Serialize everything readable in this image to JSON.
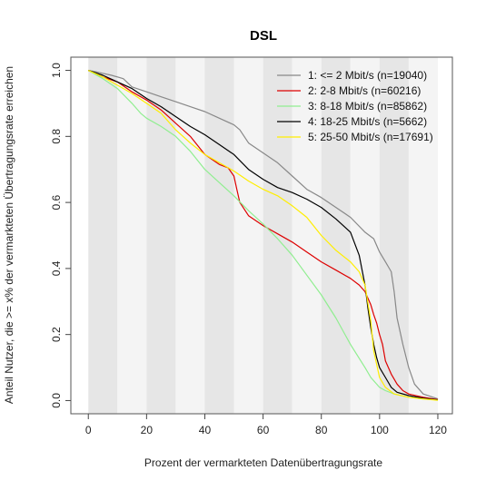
{
  "chart_data": {
    "type": "line",
    "title": "DSL",
    "xlabel": "Prozent der vermarkteten Datenübertragungsrate",
    "ylabel": "Anteil Nutzer, die >= x% der vermarkteten Übertragungsrate erreichen",
    "xlim": [
      -6,
      125
    ],
    "ylim": [
      -0.04,
      1.04
    ],
    "xticks": [
      0,
      20,
      40,
      60,
      80,
      100,
      120
    ],
    "yticks": [
      0.0,
      0.2,
      0.4,
      0.6,
      0.8,
      1.0
    ],
    "background_bands": {
      "step": 10,
      "colors": [
        "#e6e6e6",
        "#f4f4f4"
      ]
    },
    "legend_position": "top-right",
    "series": [
      {
        "name": "1: <= 2 Mbit/s (n=19040)",
        "color": "#888888",
        "x": [
          0,
          3,
          8,
          12,
          15,
          20,
          25,
          30,
          35,
          40,
          45,
          50,
          52,
          55,
          60,
          65,
          70,
          75,
          80,
          85,
          90,
          95,
          98,
          100,
          102,
          104,
          105,
          106,
          108,
          110,
          112,
          115,
          120
        ],
        "y": [
          1.0,
          0.995,
          0.985,
          0.975,
          0.95,
          0.935,
          0.92,
          0.905,
          0.89,
          0.875,
          0.855,
          0.835,
          0.82,
          0.78,
          0.75,
          0.72,
          0.68,
          0.64,
          0.615,
          0.585,
          0.555,
          0.51,
          0.49,
          0.45,
          0.42,
          0.39,
          0.33,
          0.25,
          0.17,
          0.1,
          0.05,
          0.02,
          0.005
        ]
      },
      {
        "name": "2: 2-8 Mbit/s (n=60216)",
        "color": "#dd0000",
        "x": [
          0,
          5,
          10,
          15,
          20,
          25,
          30,
          35,
          40,
          45,
          48,
          50,
          51,
          52,
          55,
          60,
          65,
          70,
          75,
          80,
          85,
          90,
          93,
          95,
          97,
          98,
          99,
          100,
          101,
          102,
          104,
          106,
          108,
          110,
          115,
          120
        ],
        "y": [
          1.0,
          0.98,
          0.965,
          0.935,
          0.91,
          0.88,
          0.84,
          0.8,
          0.745,
          0.715,
          0.705,
          0.68,
          0.64,
          0.6,
          0.56,
          0.53,
          0.505,
          0.48,
          0.45,
          0.42,
          0.395,
          0.37,
          0.35,
          0.33,
          0.29,
          0.26,
          0.235,
          0.2,
          0.17,
          0.12,
          0.08,
          0.05,
          0.03,
          0.02,
          0.01,
          0.003
        ]
      },
      {
        "name": "3: 8-18 Mbit/s (n=85862)",
        "color": "#90ee90",
        "x": [
          0,
          5,
          10,
          15,
          18,
          20,
          25,
          30,
          35,
          40,
          45,
          50,
          55,
          60,
          65,
          70,
          75,
          80,
          85,
          90,
          95,
          97,
          100,
          102,
          105,
          110,
          115,
          120
        ],
        "y": [
          1.0,
          0.975,
          0.945,
          0.9,
          0.87,
          0.855,
          0.83,
          0.8,
          0.755,
          0.7,
          0.66,
          0.62,
          0.575,
          0.535,
          0.49,
          0.44,
          0.38,
          0.32,
          0.25,
          0.17,
          0.1,
          0.07,
          0.04,
          0.03,
          0.02,
          0.01,
          0.005,
          0.002
        ]
      },
      {
        "name": "4: 18-25 Mbit/s (n=5662)",
        "color": "#000000",
        "x": [
          0,
          5,
          10,
          15,
          20,
          25,
          30,
          35,
          40,
          45,
          50,
          55,
          60,
          65,
          70,
          75,
          80,
          85,
          90,
          93,
          95,
          96,
          97,
          98,
          99,
          100,
          102,
          104,
          106,
          110,
          115,
          120
        ],
        "y": [
          1.0,
          0.985,
          0.965,
          0.945,
          0.915,
          0.89,
          0.86,
          0.83,
          0.805,
          0.775,
          0.745,
          0.7,
          0.67,
          0.645,
          0.63,
          0.61,
          0.585,
          0.55,
          0.51,
          0.44,
          0.35,
          0.28,
          0.22,
          0.17,
          0.13,
          0.1,
          0.07,
          0.04,
          0.025,
          0.015,
          0.007,
          0.002
        ]
      },
      {
        "name": "5: 25-50 Mbit/s (n=17691)",
        "color": "#ffee00",
        "x": [
          0,
          5,
          10,
          15,
          20,
          25,
          30,
          35,
          40,
          45,
          50,
          55,
          60,
          65,
          70,
          75,
          80,
          85,
          90,
          93,
          95,
          97,
          98,
          100,
          102,
          105,
          110,
          115,
          120
        ],
        "y": [
          1.0,
          0.98,
          0.955,
          0.93,
          0.9,
          0.87,
          0.82,
          0.78,
          0.745,
          0.72,
          0.695,
          0.665,
          0.64,
          0.62,
          0.59,
          0.555,
          0.5,
          0.455,
          0.42,
          0.39,
          0.35,
          0.24,
          0.15,
          0.07,
          0.04,
          0.02,
          0.01,
          0.005,
          0.001
        ]
      }
    ]
  }
}
